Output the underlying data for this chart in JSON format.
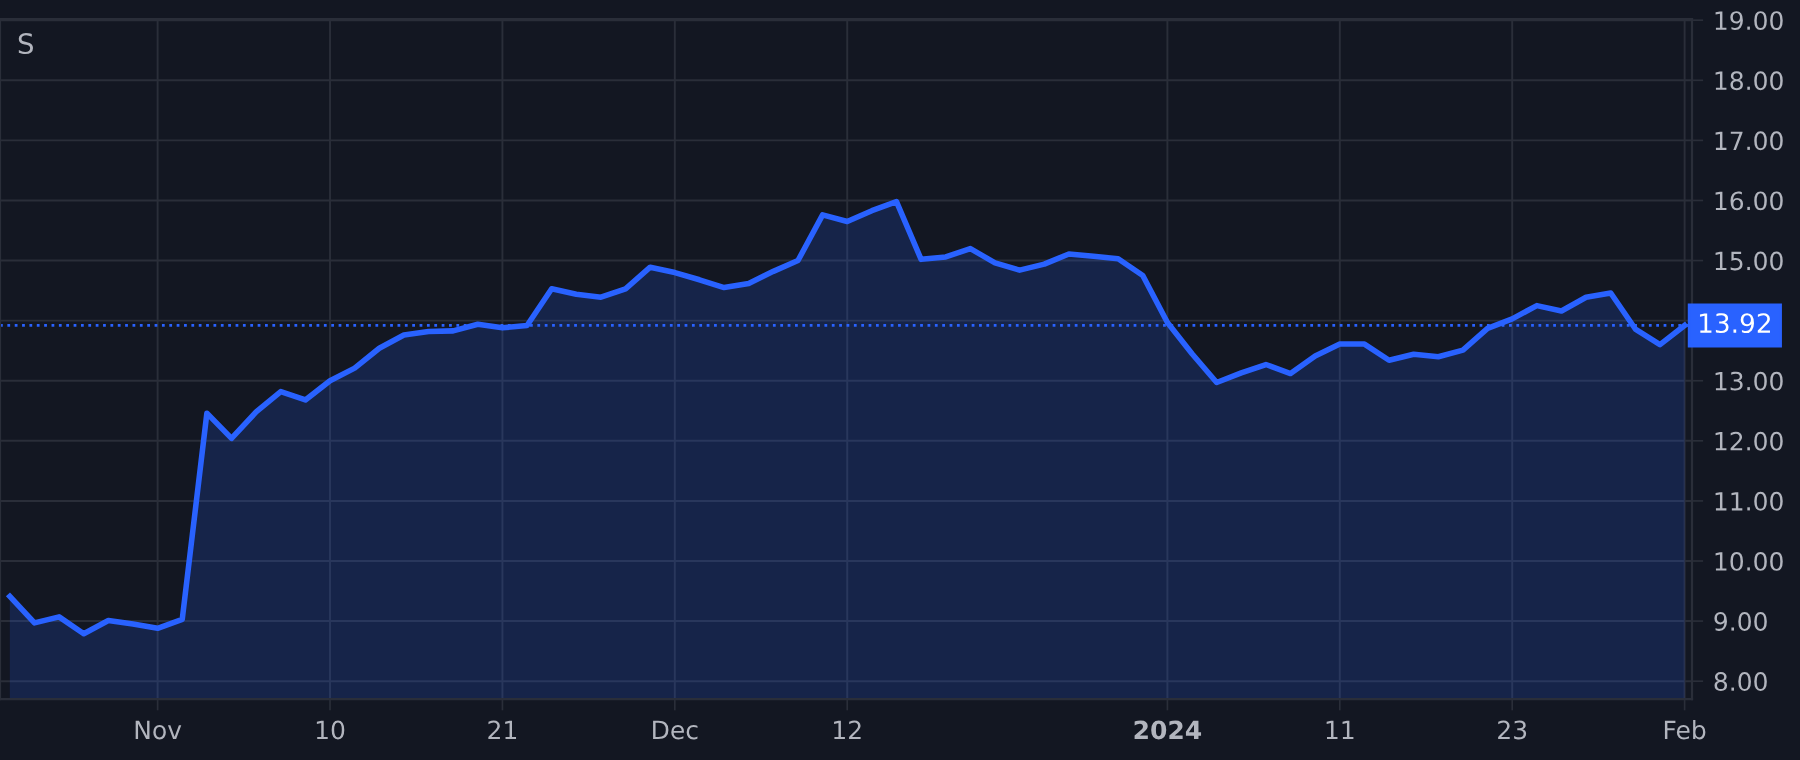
{
  "chart_data": {
    "type": "area",
    "categories": [
      null,
      null,
      null,
      null,
      null,
      null,
      "Nov",
      null,
      null,
      null,
      null,
      null,
      null,
      "10",
      null,
      null,
      null,
      null,
      null,
      null,
      "21",
      null,
      null,
      null,
      null,
      null,
      null,
      "Dec",
      null,
      null,
      null,
      null,
      null,
      null,
      "12",
      null,
      null,
      null,
      null,
      null,
      null,
      null,
      null,
      null,
      null,
      null,
      null,
      "2024",
      null,
      null,
      null,
      null,
      null,
      null,
      "11",
      null,
      null,
      null,
      null,
      null,
      null,
      "23",
      null,
      null,
      null,
      null,
      null,
      null,
      "Feb"
    ],
    "series": [
      {
        "color": "#2962ff",
        "values": [
          9.41,
          8.97,
          9.07,
          8.79,
          9.01,
          8.95,
          8.88,
          9.03,
          12.46,
          12.04,
          12.48,
          12.82,
          12.68,
          13.0,
          13.21,
          13.54,
          13.76,
          13.82,
          13.83,
          13.94,
          13.88,
          13.92,
          14.53,
          14.44,
          14.39,
          14.53,
          14.89,
          14.8,
          14.68,
          14.55,
          14.62,
          14.82,
          15.0,
          15.76,
          15.65,
          15.83,
          15.98,
          15.02,
          15.06,
          15.2,
          14.96,
          14.84,
          14.94,
          15.11,
          15.07,
          15.03,
          14.75,
          13.97,
          13.45,
          12.97,
          13.13,
          13.27,
          13.12,
          13.41,
          13.61,
          13.61,
          13.34,
          13.44,
          13.4,
          13.51,
          13.87,
          14.03,
          14.25,
          14.16,
          14.39,
          14.46,
          13.86,
          13.6,
          13.92
        ]
      }
    ],
    "ylim": [
      7.7,
      19.02
    ],
    "yticks": [
      {
        "value": 8,
        "label": "8.00"
      },
      {
        "value": 9,
        "label": "9.00"
      },
      {
        "value": 10,
        "label": "10.00"
      },
      {
        "value": 11,
        "label": "11.00"
      },
      {
        "value": 12,
        "label": "12.00"
      },
      {
        "value": 13,
        "label": "13.00"
      },
      {
        "value": 14,
        "label": null
      },
      {
        "value": 15,
        "label": "15.00"
      },
      {
        "value": 16,
        "label": "16.00"
      },
      {
        "value": 17,
        "label": "17.00"
      },
      {
        "value": 18,
        "label": "18.00"
      },
      {
        "value": 19,
        "label": "19.00"
      }
    ],
    "ref_lines": [
      {
        "axis": "y",
        "value": 13.92,
        "label": "13.92",
        "color": "#2962ff",
        "line_style": "dotted"
      }
    ],
    "annotations": [
      "S"
    ],
    "grid": true,
    "legend": false
  }
}
